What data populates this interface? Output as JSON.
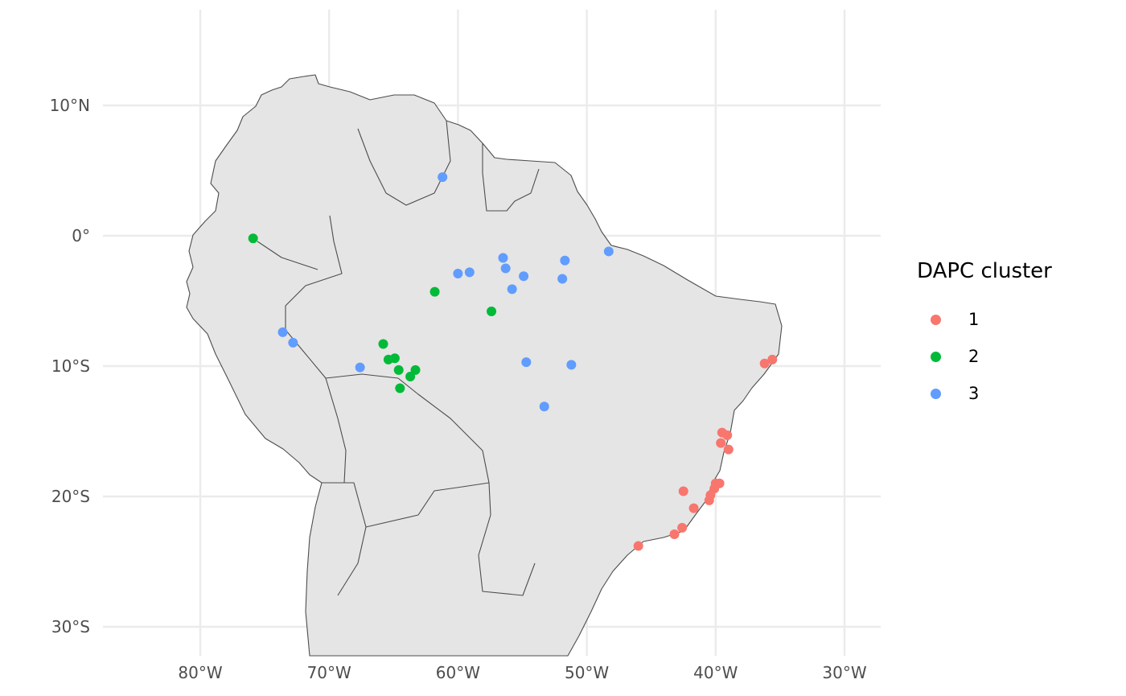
{
  "chart_data": {
    "type": "scatter",
    "title": "",
    "xlabel": "",
    "ylabel": "",
    "xlim": [
      -87.5,
      -27.5
    ],
    "ylim": [
      -32,
      17.5
    ],
    "x_ticks": [
      {
        "value": -80,
        "label": "80°W"
      },
      {
        "value": -70,
        "label": "70°W"
      },
      {
        "value": -60,
        "label": "60°W"
      },
      {
        "value": -50,
        "label": "50°W"
      },
      {
        "value": -40,
        "label": "40°W"
      },
      {
        "value": -30,
        "label": "30°W"
      }
    ],
    "y_ticks": [
      {
        "value": 10,
        "label": "10°N"
      },
      {
        "value": 0,
        "label": "0°"
      },
      {
        "value": -10,
        "label": "10°S"
      },
      {
        "value": -20,
        "label": "20°S"
      },
      {
        "value": -30,
        "label": "30°S"
      }
    ],
    "grid": true,
    "legend": {
      "title": "DAPC cluster",
      "placement": "right"
    },
    "series": [
      {
        "name": "1",
        "color": "#F8766D",
        "points": [
          [
            -36.2,
            -9.8
          ],
          [
            -35.6,
            -9.5
          ],
          [
            -39.5,
            -15.1
          ],
          [
            -39.1,
            -15.3
          ],
          [
            -39.6,
            -15.9
          ],
          [
            -39.0,
            -16.4
          ],
          [
            -40.0,
            -19.0
          ],
          [
            -39.7,
            -19.0
          ],
          [
            -40.1,
            -19.4
          ],
          [
            -40.4,
            -19.9
          ],
          [
            -40.5,
            -20.3
          ],
          [
            -42.5,
            -19.6
          ],
          [
            -41.7,
            -20.9
          ],
          [
            -42.6,
            -22.4
          ],
          [
            -43.2,
            -22.9
          ],
          [
            -46.0,
            -23.8
          ]
        ]
      },
      {
        "name": "2",
        "color": "#00BA38",
        "points": [
          [
            -75.9,
            -0.2
          ],
          [
            -61.8,
            -4.3
          ],
          [
            -57.4,
            -5.8
          ],
          [
            -65.8,
            -8.3
          ],
          [
            -65.4,
            -9.5
          ],
          [
            -64.9,
            -9.4
          ],
          [
            -64.6,
            -10.3
          ],
          [
            -63.7,
            -10.8
          ],
          [
            -63.3,
            -10.3
          ],
          [
            -64.5,
            -11.7
          ]
        ]
      },
      {
        "name": "3",
        "color": "#619CFF",
        "points": [
          [
            -61.2,
            4.5
          ],
          [
            -56.5,
            -1.7
          ],
          [
            -56.3,
            -2.5
          ],
          [
            -60.0,
            -2.9
          ],
          [
            -59.1,
            -2.8
          ],
          [
            -54.9,
            -3.1
          ],
          [
            -55.8,
            -4.1
          ],
          [
            -51.7,
            -1.9
          ],
          [
            -51.9,
            -3.3
          ],
          [
            -48.3,
            -1.2
          ],
          [
            -73.6,
            -7.4
          ],
          [
            -72.8,
            -8.2
          ],
          [
            -67.6,
            -10.1
          ],
          [
            -54.7,
            -9.7
          ],
          [
            -51.2,
            -9.9
          ],
          [
            -53.3,
            -13.1
          ]
        ]
      }
    ]
  }
}
